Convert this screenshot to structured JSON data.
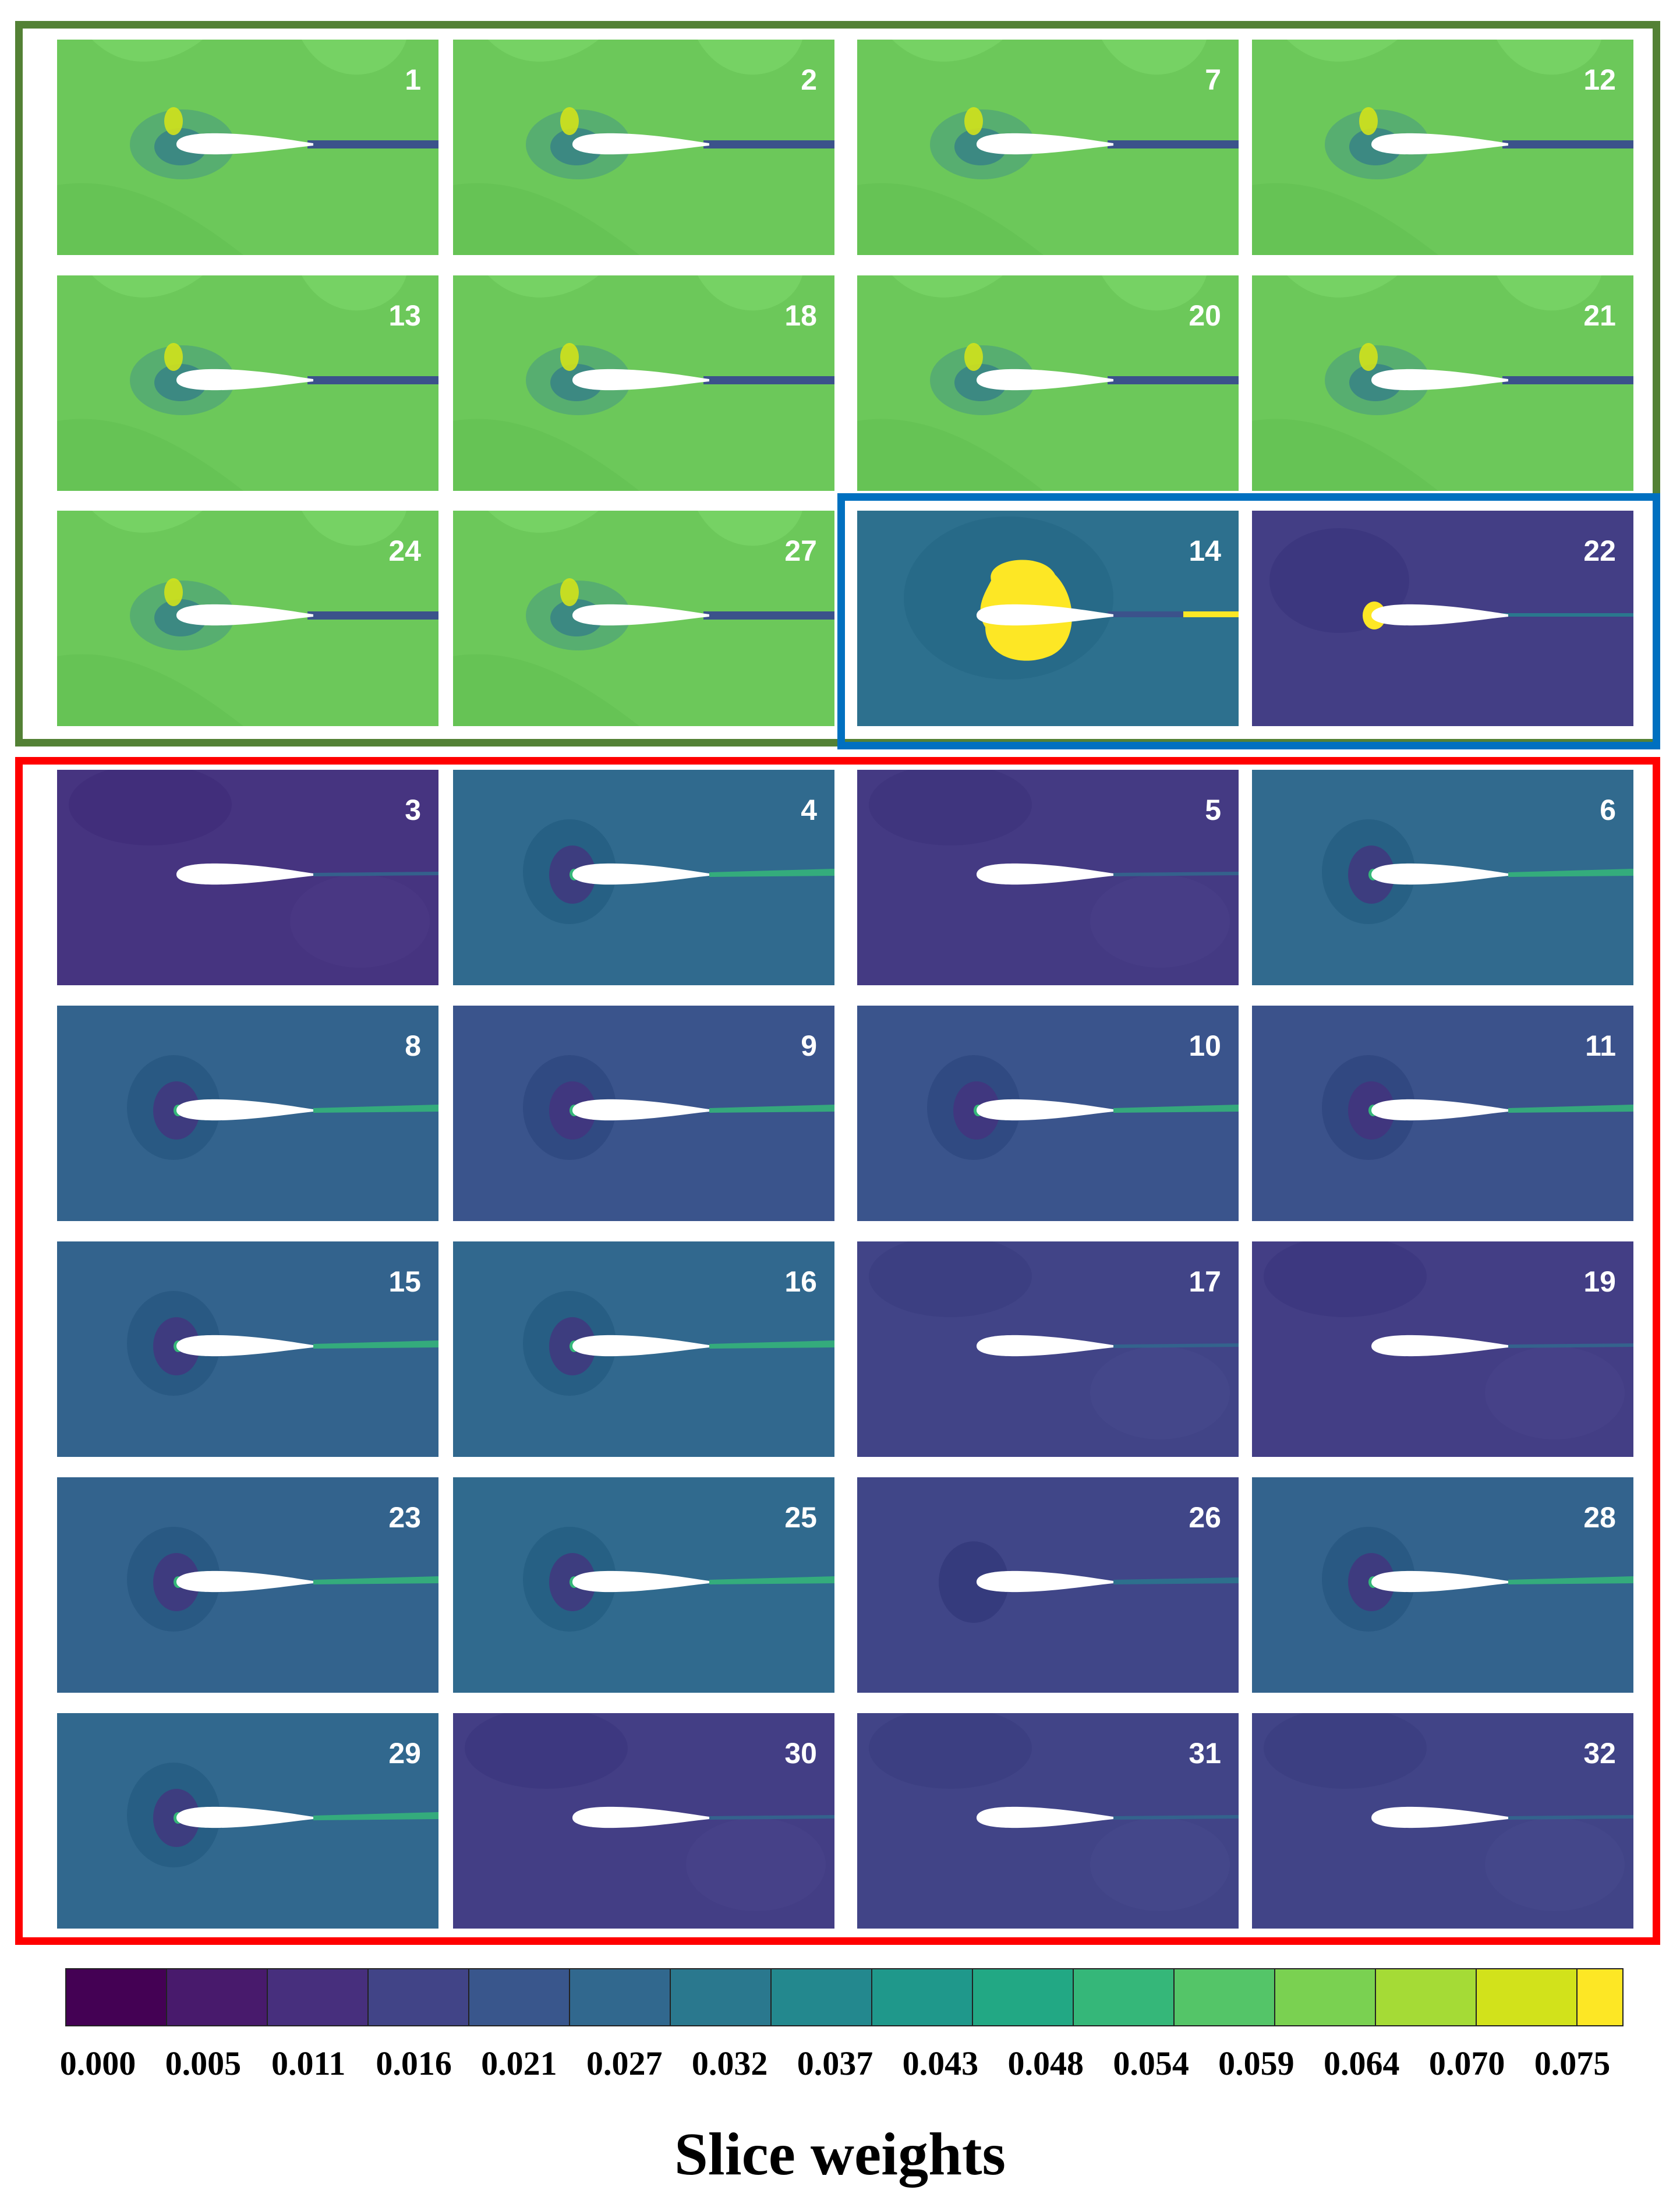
{
  "colormap": [
    "#440154",
    "#481a6c",
    "#472f7d",
    "#414487",
    "#39568c",
    "#31688e",
    "#2a788e",
    "#23888e",
    "#1f988b",
    "#22a884",
    "#35b779",
    "#54c568",
    "#7ad151",
    "#a5db36",
    "#d2e21b",
    "#fde725"
  ],
  "groups": [
    {
      "name": "green-group",
      "color": "#538135",
      "panels": [
        1,
        2,
        7,
        12,
        13,
        18,
        20,
        21,
        24,
        27
      ]
    },
    {
      "name": "blue-group",
      "color": "#0070c0",
      "panels": [
        14,
        22
      ]
    },
    {
      "name": "red-group",
      "color": "#ff0000",
      "panels": [
        3,
        4,
        5,
        6,
        8,
        9,
        10,
        11,
        15,
        16,
        17,
        19,
        23,
        25,
        26,
        28,
        29,
        30,
        31,
        32
      ]
    }
  ],
  "panels": [
    {
      "label": "1",
      "background": "#6cc85a",
      "style": "green"
    },
    {
      "label": "2",
      "background": "#6cc85a",
      "style": "green"
    },
    {
      "label": "7",
      "background": "#6cc85a",
      "style": "green"
    },
    {
      "label": "12",
      "background": "#6cc85a",
      "style": "green"
    },
    {
      "label": "13",
      "background": "#6cc85a",
      "style": "green"
    },
    {
      "label": "18",
      "background": "#6cc85a",
      "style": "green"
    },
    {
      "label": "20",
      "background": "#6cc85a",
      "style": "green"
    },
    {
      "label": "21",
      "background": "#6cc85a",
      "style": "green"
    },
    {
      "label": "24",
      "background": "#6cc85a",
      "style": "green"
    },
    {
      "label": "27",
      "background": "#6cc85a",
      "style": "green"
    },
    {
      "label": "14",
      "background": "#2d708e",
      "style": "yellow-blob"
    },
    {
      "label": "22",
      "background": "#433e85",
      "style": "dark-edge"
    },
    {
      "label": "3",
      "background": "#463480",
      "style": "dark-faint"
    },
    {
      "label": "4",
      "background": "#306a8e",
      "style": "teal"
    },
    {
      "label": "5",
      "background": "#443a83",
      "style": "dark-faint"
    },
    {
      "label": "6",
      "background": "#316a8e",
      "style": "teal"
    },
    {
      "label": "8",
      "background": "#33638d",
      "style": "teal"
    },
    {
      "label": "9",
      "background": "#3a548c",
      "style": "teal"
    },
    {
      "label": "10",
      "background": "#3a548c",
      "style": "teal"
    },
    {
      "label": "11",
      "background": "#3b528b",
      "style": "teal"
    },
    {
      "label": "15",
      "background": "#33638d",
      "style": "teal"
    },
    {
      "label": "16",
      "background": "#31688e",
      "style": "teal"
    },
    {
      "label": "17",
      "background": "#414487",
      "style": "dark-faint"
    },
    {
      "label": "19",
      "background": "#433e85",
      "style": "dark-faint"
    },
    {
      "label": "23",
      "background": "#33638d",
      "style": "teal"
    },
    {
      "label": "25",
      "background": "#306a8e",
      "style": "teal"
    },
    {
      "label": "26",
      "background": "#404688",
      "style": "dark"
    },
    {
      "label": "28",
      "background": "#33638d",
      "style": "teal"
    },
    {
      "label": "29",
      "background": "#31688e",
      "style": "teal"
    },
    {
      "label": "30",
      "background": "#433e85",
      "style": "dark-faint"
    },
    {
      "label": "31",
      "background": "#414487",
      "style": "dark-faint"
    },
    {
      "label": "32",
      "background": "#414487",
      "style": "dark-faint"
    }
  ],
  "colorbar": {
    "title": "Slice weights",
    "tick_labels": [
      "0.000",
      "0.005",
      "0.011",
      "0.016",
      "0.021",
      "0.027",
      "0.032",
      "0.037",
      "0.043",
      "0.048",
      "0.054",
      "0.059",
      "0.064",
      "0.070",
      "0.075"
    ]
  }
}
